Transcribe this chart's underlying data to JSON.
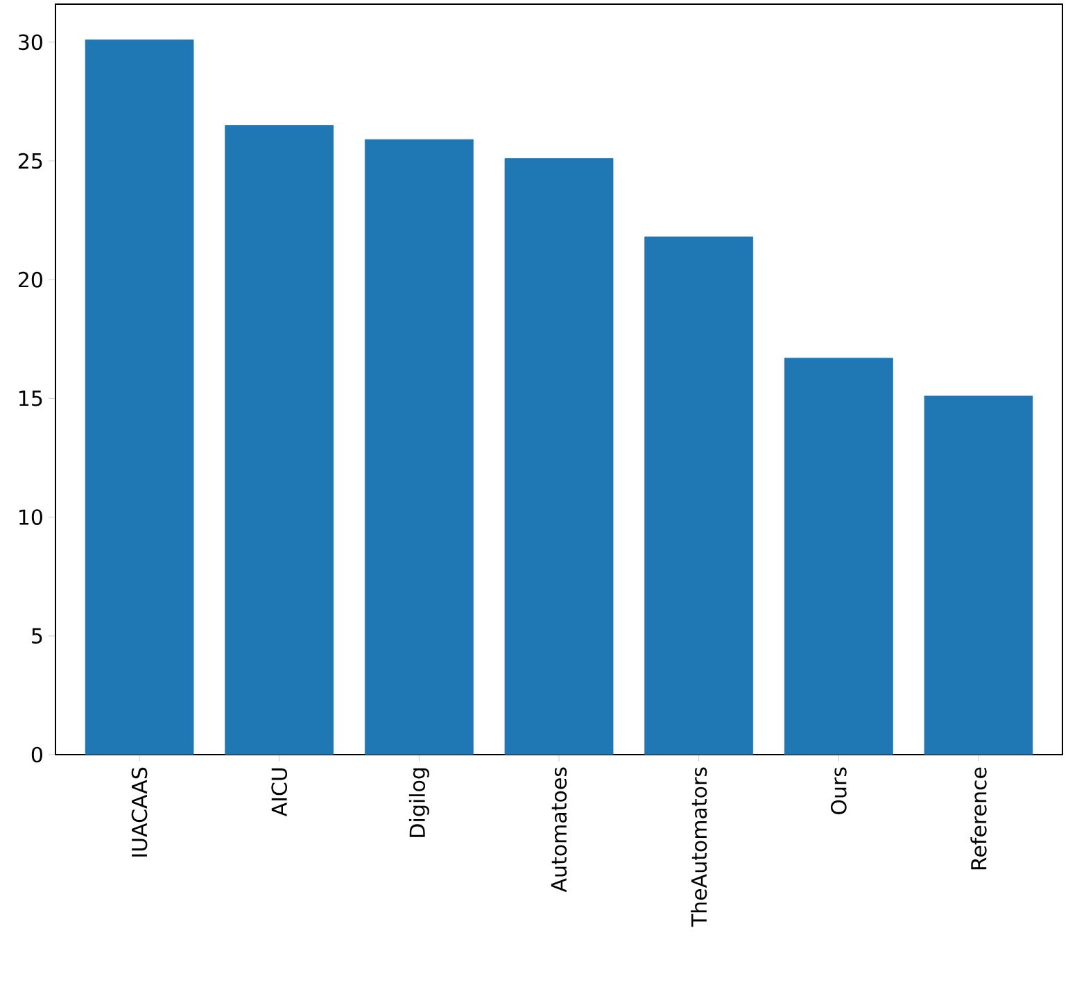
{
  "chart_data": {
    "type": "bar",
    "categories": [
      "IUACAAS",
      "AICU",
      "Digilog",
      "Automatoes",
      "TheAutomators",
      "Ours",
      "Reference"
    ],
    "values": [
      30.1,
      26.5,
      25.9,
      25.1,
      21.8,
      16.7,
      15.1
    ],
    "color": "#1f77b4",
    "ylim": [
      0,
      31.6
    ],
    "yticks": [
      0,
      5,
      10,
      15,
      20,
      25,
      30
    ],
    "grid": false
  }
}
